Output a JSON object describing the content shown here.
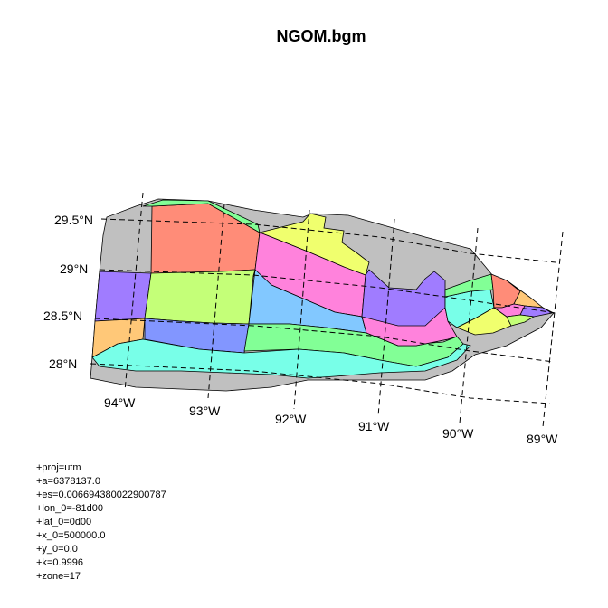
{
  "title": "NGOM.bgm",
  "latitude_labels": [
    "29.5°N",
    "29°N",
    "28.5°N",
    "28°N"
  ],
  "longitude_labels": [
    "94°W",
    "93°W",
    "92°W",
    "91°W",
    "90°W",
    "89°W"
  ],
  "projection_params": [
    "+proj=utm",
    "+a=6378137.0",
    "+es=0.006694380022900787",
    "+lon_0=-81d00",
    "+lat_0=0d00",
    "+x_0=500000.0",
    "+y_0=0.0",
    "+k=0.9996",
    "+zone=17"
  ],
  "colors": {
    "boundary": "#c0c0c0",
    "salmon": "#ff8c78",
    "light_green": "#c4ff78",
    "yellow": "#f0ff6e",
    "pink": "#ff82dc",
    "purple": "#a07cff",
    "light_blue": "#82c8ff",
    "medium_blue": "#8296ff",
    "green": "#82ff96",
    "cyan": "#78ffe8",
    "orange": "#ffc878"
  }
}
